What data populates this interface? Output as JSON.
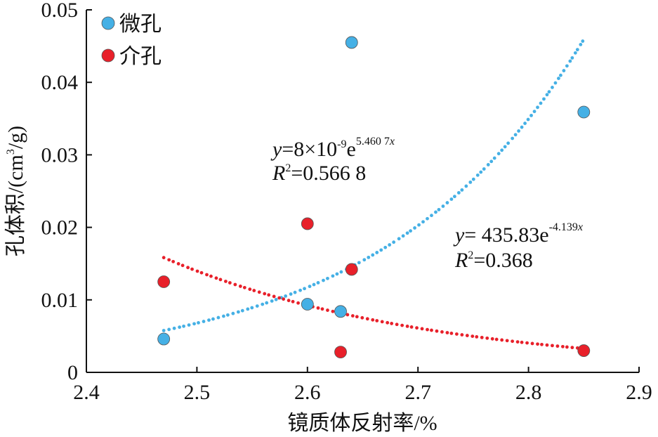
{
  "chart_data": {
    "type": "scatter",
    "xlabel": "镜质体反射率/%",
    "ylabel": "孔体积/(cm³/g)",
    "ylabel_parts": {
      "main": "孔体积/(cm",
      "sup": "3",
      "tail": "/g)"
    },
    "xlim": [
      2.4,
      2.9
    ],
    "ylim": [
      0,
      0.05
    ],
    "xticks": [
      "2.4",
      "2.5",
      "2.6",
      "2.7",
      "2.8",
      "2.9"
    ],
    "yticks": [
      "0",
      "0.01",
      "0.02",
      "0.03",
      "0.04",
      "0.05"
    ],
    "grid": false,
    "legend_position": "top-left",
    "series": [
      {
        "name": "微孔",
        "color": "#45b0e5",
        "x": [
          2.47,
          2.6,
          2.63,
          2.64,
          2.85
        ],
        "y": [
          0.0046,
          0.0094,
          0.0084,
          0.0455,
          0.0359
        ],
        "trend": {
          "type": "exponential",
          "a": 8e-09,
          "b": 5.4607,
          "range": [
            2.47,
            2.85
          ]
        },
        "equation": {
          "y": "y",
          "pre": "=8×10",
          "exp": "-9",
          "e": "e",
          "pow": "5.460 7",
          "x": "x",
          "r": "R",
          "r2sup": "2",
          "r2": "=0.566 8"
        }
      },
      {
        "name": "介孔",
        "color": "#e8202a",
        "x": [
          2.47,
          2.6,
          2.63,
          2.64,
          2.85
        ],
        "y": [
          0.0125,
          0.0205,
          0.0028,
          0.0142,
          0.003
        ],
        "trend": {
          "type": "exponential",
          "a": 435.83,
          "b": -4.139,
          "range": [
            2.47,
            2.85
          ]
        },
        "equation": {
          "y": "y",
          "pre": "= 435.83",
          "exp": "",
          "e": "e",
          "pow": "-4.139",
          "x": "x",
          "r": "R",
          "r2sup": "2",
          "r2": "=0.368"
        }
      }
    ]
  }
}
